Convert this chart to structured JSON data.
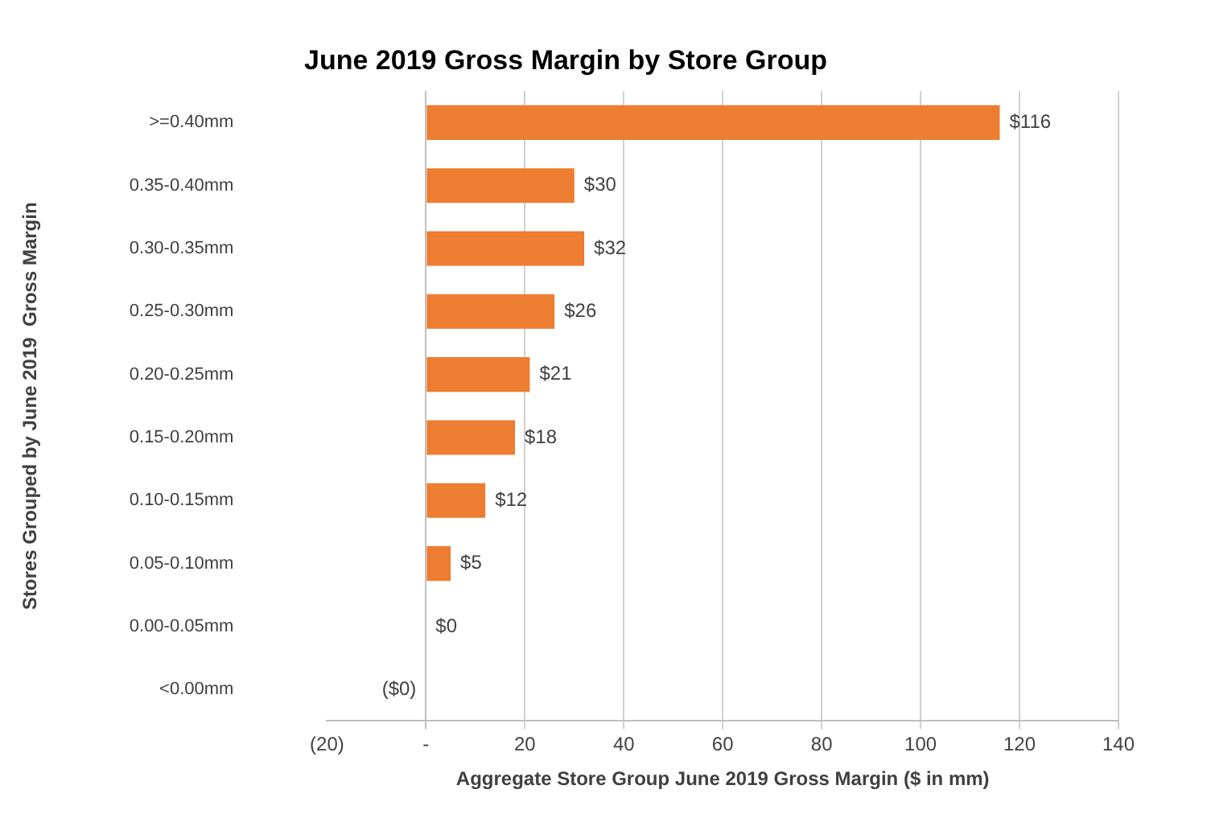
{
  "chart_data": {
    "type": "bar",
    "orientation": "horizontal",
    "title": "June 2019 Gross Margin by Store Group",
    "xlabel": "Aggregate Store Group June 2019 Gross Margin ($ in mm)",
    "ylabel": "Stores Grouped by June 2019  Gross Margin",
    "categories": [
      ">=0.40mm",
      "0.35-0.40mm",
      "0.30-0.35mm",
      "0.25-0.30mm",
      "0.20-0.25mm",
      "0.15-0.20mm",
      "0.10-0.15mm",
      "0.05-0.10mm",
      "0.00-0.05mm",
      "<0.00mm"
    ],
    "values": [
      116,
      30,
      32,
      26,
      21,
      18,
      12,
      5,
      0,
      0
    ],
    "value_labels": [
      "$116",
      "$30",
      "$32",
      "$26",
      "$21",
      "$18",
      "$12",
      "$5",
      "$0",
      "($0)"
    ],
    "color": "#ed7d31",
    "xlim": [
      -20,
      140
    ],
    "xticks": [
      {
        "value": -20,
        "label": "(20)"
      },
      {
        "value": 0,
        "label": "-"
      },
      20,
      40,
      60,
      80,
      100,
      120,
      140
    ],
    "grid": "x",
    "legend": false
  }
}
